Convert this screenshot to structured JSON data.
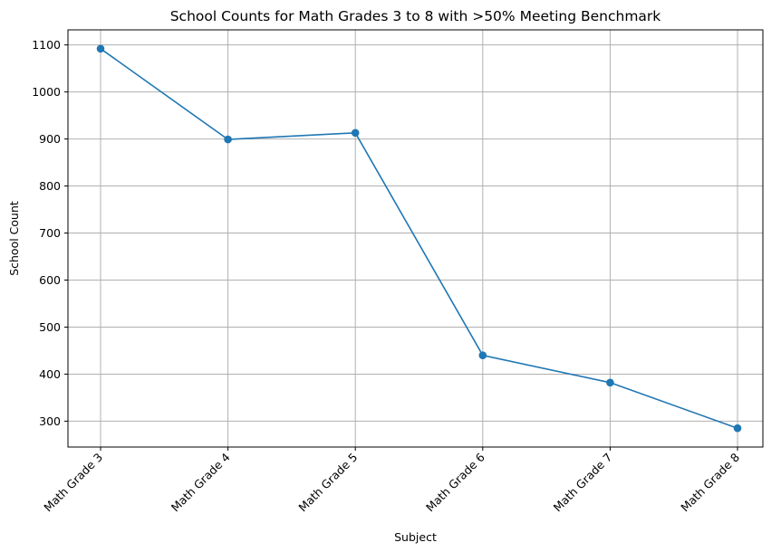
{
  "chart_data": {
    "type": "line",
    "title": "School Counts for Math Grades 3 to 8 with >50% Meeting Benchmark",
    "xlabel": "Subject",
    "ylabel": "School Count",
    "categories": [
      "Math Grade 3",
      "Math Grade 4",
      "Math Grade 5",
      "Math Grade 6",
      "Math Grade 7",
      "Math Grade 8"
    ],
    "series": [
      {
        "values": [
          1092,
          899,
          913,
          440,
          382,
          285
        ],
        "color": "#1f77b4",
        "marker": "circle"
      }
    ],
    "yticks": [
      300,
      400,
      500,
      600,
      700,
      800,
      900,
      1000,
      1100
    ],
    "ylim": [
      245,
      1132
    ],
    "grid": true,
    "legend": "none"
  }
}
